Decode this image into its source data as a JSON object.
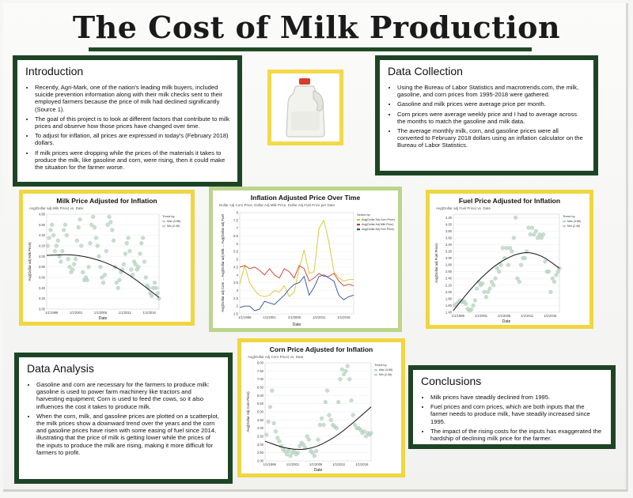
{
  "poster": {
    "title": "The Cost of Milk Production"
  },
  "introduction": {
    "heading": "Introduction",
    "bullets": [
      "Recently, Agri-Mark, one of the nation's leading milk buyers, included suicide prevention information along with their milk checks sent to their employed farmers because the price of milk had declined significantly (Source 1).",
      "The goal of this project is to look at different factors that contribute to milk prices and observe how those prices have changed over time.",
      "To adjust for inflation, all prices are expressed in today's (February 2018) dollars.",
      "If milk prices were dropping while the prices of the materials it takes to produce the milk, like gasoline and corn, were rising, then it could make the situation for the farmer worse."
    ]
  },
  "data_collection": {
    "heading": "Data Collection",
    "bullets": [
      "Using the Bureau of Labor Statistics and macrotrends.com, the milk, gasoline, and corn prices from 1995-2018 were gathered.",
      "Gasoline and milk prices were average price per month.",
      "Corn prices were average weekly price and I had to average across the months to match the gasoline and milk data.",
      "The average monthly milk, corn, and gasoline prices were all converted to February 2018 dollars using an inflation calculator on the Bureau of Labor Statistics."
    ]
  },
  "data_analysis": {
    "heading": "Data Analysis",
    "bullets": [
      "Gasoline and corn are necessary for the farmers to produce milk: gasoline is used to power farm machinery like tractors and harvesting equipment; Corn is used to feed the cows, so it also influences the cost it takes to produce milk.",
      "When the corn, milk, and gasoline prices are plotted on a scatterplot, the milk prices show a downward trend over the years and the corn and gasoline prices have risen with some easing of fuel since 2014, illustrating that the price of milk is getting lower while the prices of the inputs to produce the milk are rising, making it more difficult for farmers to profit."
    ]
  },
  "conclusions": {
    "heading": "Conclusions",
    "bullets": [
      "Milk prices have steadily declined from 1995.",
      "Fuel prices and corn prices, which are both inputs that the farmer needs to produce milk, have steadily increased since 1995.",
      "The impact of the rising costs for the inputs has exaggerated the hardship of declining milk price for the farmer."
    ]
  },
  "colors": {
    "panel_border": "#1d4525",
    "yellow_border": "#f0d640",
    "green_border": "#bcd58c",
    "scatter_point": "#b5d3c0",
    "trend_line": "#111111",
    "series_milk": "#cc3a2e",
    "series_fuel": "#d8c328",
    "series_corn": "#2f4f9a"
  },
  "chart_data": [
    {
      "id": "milk",
      "type": "scatter",
      "title": "Milk Price Adjusted for Inflation",
      "subtitle": "Avg(Dollar adj Milk Price) vs. Date",
      "xlabel": "Date",
      "ylabel": "Avg(Dollar adj Milk Price)",
      "x_ticks": [
        "1/1/1996",
        "1/1/2001",
        "1/1/2006",
        "1/1/2011",
        "1/1/2016"
      ],
      "y_ticks": [
        "3.00",
        "3.20",
        "3.40",
        "3.60",
        "3.80",
        "4.00",
        "4.20",
        "4.40",
        "4.60",
        "4.80"
      ],
      "ylim": [
        3.0,
        4.8
      ],
      "xlim": [
        1995,
        2018
      ],
      "legend": {
        "title": "Trend by",
        "items": [
          "Max (3.86)",
          "Min (2.46)"
        ]
      },
      "trend": {
        "type": "quadratic",
        "points": [
          [
            1995,
            4.02
          ],
          [
            2001,
            4.04
          ],
          [
            2007,
            3.9
          ],
          [
            2012,
            3.65
          ],
          [
            2018,
            3.22
          ]
        ]
      },
      "points": [
        [
          1995.2,
          4.2
        ],
        [
          1995.5,
          4.35
        ],
        [
          1995.8,
          4.5
        ],
        [
          1996.1,
          4.6
        ],
        [
          1996.4,
          4.4
        ],
        [
          1996.7,
          4.1
        ],
        [
          1997.0,
          4.2
        ],
        [
          1997.3,
          4.3
        ],
        [
          1997.6,
          4.0
        ],
        [
          1997.9,
          3.9
        ],
        [
          1998.2,
          4.1
        ],
        [
          1998.5,
          4.5
        ],
        [
          1998.8,
          4.6
        ],
        [
          1999.1,
          4.4
        ],
        [
          1999.4,
          3.95
        ],
        [
          1999.7,
          3.8
        ],
        [
          2000.0,
          3.7
        ],
        [
          2000.3,
          3.75
        ],
        [
          2000.6,
          3.85
        ],
        [
          2000.9,
          3.95
        ],
        [
          2001.2,
          4.3
        ],
        [
          2001.5,
          4.55
        ],
        [
          2001.8,
          4.7
        ],
        [
          2002.1,
          4.2
        ],
        [
          2002.4,
          3.7
        ],
        [
          2002.7,
          3.55
        ],
        [
          2003.0,
          3.6
        ],
        [
          2003.3,
          3.55
        ],
        [
          2003.6,
          3.8
        ],
        [
          2003.9,
          4.25
        ],
        [
          2004.2,
          4.6
        ],
        [
          2004.5,
          4.75
        ],
        [
          2004.8,
          4.55
        ],
        [
          2005.1,
          4.35
        ],
        [
          2005.4,
          4.2
        ],
        [
          2005.7,
          4.0
        ],
        [
          2006.0,
          3.8
        ],
        [
          2006.3,
          3.6
        ],
        [
          2006.6,
          3.5
        ],
        [
          2006.9,
          3.65
        ],
        [
          2007.2,
          4.1
        ],
        [
          2007.5,
          4.6
        ],
        [
          2007.8,
          4.75
        ],
        [
          2008.1,
          4.65
        ],
        [
          2008.4,
          4.5
        ],
        [
          2008.7,
          4.3
        ],
        [
          2009.0,
          3.8
        ],
        [
          2009.3,
          3.5
        ],
        [
          2009.6,
          3.4
        ],
        [
          2009.9,
          3.55
        ],
        [
          2010.2,
          3.7
        ],
        [
          2010.5,
          3.75
        ],
        [
          2010.8,
          3.85
        ],
        [
          2011.1,
          4.05
        ],
        [
          2011.4,
          4.25
        ],
        [
          2011.7,
          4.35
        ],
        [
          2012.0,
          4.1
        ],
        [
          2012.3,
          3.75
        ],
        [
          2012.6,
          3.65
        ],
        [
          2012.9,
          3.9
        ],
        [
          2013.2,
          3.85
        ],
        [
          2013.5,
          3.75
        ],
        [
          2013.8,
          3.8
        ],
        [
          2014.1,
          4.05
        ],
        [
          2014.4,
          4.25
        ],
        [
          2014.7,
          4.35
        ],
        [
          2015.0,
          3.9
        ],
        [
          2015.3,
          3.6
        ],
        [
          2015.6,
          3.45
        ],
        [
          2015.9,
          3.4
        ],
        [
          2016.2,
          3.3
        ],
        [
          2016.5,
          3.25
        ],
        [
          2016.8,
          3.4
        ],
        [
          2017.1,
          3.5
        ],
        [
          2017.4,
          3.4
        ],
        [
          2017.7,
          3.3
        ],
        [
          2018.0,
          3.2
        ]
      ]
    },
    {
      "id": "combined",
      "type": "line",
      "title": "Inflation Adjusted Price Over Time",
      "subtitle": "Dollar Adj Corn Price, Dollar Adj Milk Price, Dollar Adj Fuel Price per Date",
      "xlabel": "Date",
      "ylabel": "Avg(Dollar adj Corn ...  Avg(Dollar adj Milk ...  Avg(Dollar adj Fuel",
      "x_ticks": [
        "1/1/1996",
        "1/1/2001",
        "1/1/2006",
        "1/1/2011",
        "1/1/2016"
      ],
      "y_ticks": [
        "1.5",
        "2",
        "2.5",
        "3",
        "3.5",
        "4",
        "4.5",
        "5",
        "5.5",
        "6",
        "6.5",
        "7",
        "7.5",
        "8"
      ],
      "ylim": [
        1.5,
        8
      ],
      "xlim": [
        1995,
        2018
      ],
      "legend": {
        "title": "Series by",
        "items": [
          "Avg(Dollar Adj Corn Price)",
          "Avg(Dollar Adj Milk Price)",
          "Avg(Dollar Adj Fuel Price)"
        ]
      },
      "x": [
        1995,
        1996,
        1997,
        1998,
        1999,
        2000,
        2001,
        2002,
        2003,
        2004,
        2005,
        2006,
        2007,
        2008,
        2009,
        2010,
        2011,
        2012,
        2013,
        2014,
        2015,
        2016,
        2017,
        2018
      ],
      "series": [
        {
          "name": "Avg(Dollar Adj Corn Price)",
          "values": [
            3.4,
            4.6,
            3.5,
            3.0,
            2.7,
            2.6,
            2.7,
            3.0,
            2.9,
            3.3,
            2.6,
            2.9,
            4.4,
            5.6,
            4.1,
            4.2,
            7.0,
            7.5,
            6.1,
            4.2,
            3.8,
            3.6,
            3.7,
            3.7
          ]
        },
        {
          "name": "Avg(Dollar Adj Milk Price)",
          "values": [
            4.5,
            4.6,
            4.4,
            4.5,
            4.3,
            4.0,
            4.4,
            4.0,
            3.8,
            4.4,
            4.2,
            3.8,
            4.6,
            4.4,
            3.6,
            3.8,
            4.1,
            3.9,
            3.9,
            4.1,
            3.6,
            3.3,
            3.4,
            3.3
          ]
        },
        {
          "name": "Avg(Dollar Adj Fuel Price)",
          "values": [
            1.9,
            2.0,
            2.0,
            1.7,
            1.8,
            2.3,
            2.2,
            2.1,
            2.4,
            2.7,
            3.1,
            3.4,
            3.5,
            3.9,
            2.7,
            3.2,
            3.9,
            4.0,
            3.8,
            3.6,
            2.7,
            2.4,
            2.6,
            2.7
          ]
        }
      ]
    },
    {
      "id": "fuel",
      "type": "scatter",
      "title": "Fuel Price Adjusted for Inflation",
      "subtitle": "Avg(Dollar adj Fuel Price) vs. Date",
      "xlabel": "Date",
      "ylabel": "Avg(Dollar adj Fuel Price)",
      "x_ticks": [
        "1/1/1996",
        "1/1/2001",
        "1/1/2006",
        "1/1/2011",
        "1/1/2016"
      ],
      "y_ticks": [
        "1.40",
        "1.60",
        "1.80",
        "2.00",
        "2.20",
        "2.40",
        "2.60",
        "2.80",
        "3.00",
        "3.20",
        "3.40",
        "3.60",
        "3.80",
        "4.00",
        "4.20"
      ],
      "ylim": [
        1.4,
        4.3
      ],
      "xlim": [
        1995,
        2018
      ],
      "legend": {
        "title": "Trend by",
        "items": [
          "Max (3.86)",
          "Min (2.46)"
        ]
      },
      "trend": {
        "type": "quadratic",
        "points": [
          [
            1995,
            1.45
          ],
          [
            2000,
            2.3
          ],
          [
            2005,
            2.9
          ],
          [
            2010,
            3.2
          ],
          [
            2014,
            3.1
          ],
          [
            2018,
            2.7
          ]
        ]
      },
      "points": [
        [
          1995.3,
          1.6
        ],
        [
          1995.7,
          1.65
        ],
        [
          1996.1,
          1.7
        ],
        [
          1996.5,
          1.75
        ],
        [
          1996.9,
          1.7
        ],
        [
          1997.3,
          1.72
        ],
        [
          1997.7,
          1.65
        ],
        [
          1998.1,
          1.5
        ],
        [
          1998.5,
          1.45
        ],
        [
          1998.9,
          1.48
        ],
        [
          1999.3,
          1.6
        ],
        [
          1999.7,
          1.75
        ],
        [
          2000.1,
          2.1
        ],
        [
          2000.5,
          2.3
        ],
        [
          2000.9,
          2.2
        ],
        [
          2001.3,
          2.25
        ],
        [
          2001.7,
          2.0
        ],
        [
          2002.1,
          1.85
        ],
        [
          2002.5,
          2.0
        ],
        [
          2002.9,
          2.1
        ],
        [
          2003.3,
          2.3
        ],
        [
          2003.7,
          2.2
        ],
        [
          2004.1,
          2.4
        ],
        [
          2004.5,
          2.7
        ],
        [
          2004.9,
          2.6
        ],
        [
          2005.3,
          2.8
        ],
        [
          2005.7,
          3.3
        ],
        [
          2006.1,
          3.0
        ],
        [
          2006.5,
          3.3
        ],
        [
          2006.9,
          2.8
        ],
        [
          2007.3,
          3.3
        ],
        [
          2007.7,
          3.2
        ],
        [
          2008.1,
          3.6
        ],
        [
          2008.5,
          4.2
        ],
        [
          2008.9,
          2.4
        ],
        [
          2009.3,
          2.3
        ],
        [
          2009.7,
          2.8
        ],
        [
          2010.1,
          3.0
        ],
        [
          2010.5,
          3.0
        ],
        [
          2010.9,
          3.2
        ],
        [
          2011.3,
          3.9
        ],
        [
          2011.7,
          3.7
        ],
        [
          2012.1,
          3.9
        ],
        [
          2012.5,
          3.7
        ],
        [
          2012.9,
          3.8
        ],
        [
          2013.3,
          3.6
        ],
        [
          2013.7,
          3.7
        ],
        [
          2014.1,
          3.6
        ],
        [
          2014.5,
          3.7
        ],
        [
          2014.9,
          2.9
        ],
        [
          2015.3,
          2.6
        ],
        [
          2015.7,
          2.6
        ],
        [
          2016.1,
          2.0
        ],
        [
          2016.5,
          2.4
        ],
        [
          2016.9,
          2.3
        ],
        [
          2017.3,
          2.5
        ],
        [
          2017.7,
          2.6
        ],
        [
          2018.0,
          2.7
        ]
      ]
    },
    {
      "id": "corn",
      "type": "scatter",
      "title": "Corn Price Adjusted for Inflation",
      "subtitle": "Avg(Dollar Adj Corn Price) vs. Date",
      "xlabel": "Date",
      "ylabel": "Avg(Dollar Adj Corn Price)",
      "x_ticks": [
        "1/1/1996",
        "1/1/2001",
        "1/1/2006",
        "1/1/2011",
        "1/1/2016"
      ],
      "y_ticks": [
        "2.00",
        "2.50",
        "3.00",
        "3.50",
        "4.00",
        "4.50",
        "5.00",
        "5.50",
        "6.00",
        "6.50",
        "7.00",
        "7.50",
        "8.00"
      ],
      "ylim": [
        2.0,
        8.0
      ],
      "xlim": [
        1995,
        2018
      ],
      "legend": {
        "title": "Trend by",
        "items": [
          "Max (3.86)",
          "Min (2.46)"
        ]
      },
      "trend": {
        "type": "quadratic",
        "points": [
          [
            1995,
            3.2
          ],
          [
            2000,
            2.7
          ],
          [
            2005,
            2.7
          ],
          [
            2010,
            3.4
          ],
          [
            2014,
            4.3
          ],
          [
            2018,
            5.3
          ]
        ]
      },
      "points": [
        [
          1995.3,
          3.6
        ],
        [
          1995.7,
          4.4
        ],
        [
          1996.1,
          5.3
        ],
        [
          1996.5,
          6.3
        ],
        [
          1996.9,
          4.3
        ],
        [
          1997.3,
          3.8
        ],
        [
          1997.7,
          3.4
        ],
        [
          1998.1,
          3.2
        ],
        [
          1998.5,
          2.9
        ],
        [
          1998.9,
          2.7
        ],
        [
          1999.3,
          2.6
        ],
        [
          1999.7,
          2.4
        ],
        [
          2000.1,
          2.6
        ],
        [
          2000.5,
          2.3
        ],
        [
          2000.9,
          2.5
        ],
        [
          2001.3,
          2.6
        ],
        [
          2001.7,
          2.4
        ],
        [
          2002.1,
          2.5
        ],
        [
          2002.5,
          2.9
        ],
        [
          2002.9,
          3.1
        ],
        [
          2003.3,
          3.0
        ],
        [
          2003.7,
          2.8
        ],
        [
          2004.1,
          3.5
        ],
        [
          2004.5,
          3.3
        ],
        [
          2004.9,
          2.6
        ],
        [
          2005.3,
          2.5
        ],
        [
          2005.7,
          2.3
        ],
        [
          2006.1,
          2.6
        ],
        [
          2006.5,
          3.3
        ],
        [
          2006.9,
          4.2
        ],
        [
          2007.3,
          4.6
        ],
        [
          2007.7,
          4.2
        ],
        [
          2008.1,
          5.6
        ],
        [
          2008.5,
          6.3
        ],
        [
          2008.9,
          4.8
        ],
        [
          2009.3,
          4.5
        ],
        [
          2009.7,
          4.2
        ],
        [
          2010.1,
          4.1
        ],
        [
          2010.5,
          4.0
        ],
        [
          2010.9,
          5.6
        ],
        [
          2011.3,
          7.0
        ],
        [
          2011.7,
          7.6
        ],
        [
          2012.1,
          7.3
        ],
        [
          2012.5,
          7.5
        ],
        [
          2012.9,
          7.8
        ],
        [
          2013.3,
          7.0
        ],
        [
          2013.7,
          5.7
        ],
        [
          2014.1,
          4.8
        ],
        [
          2014.5,
          4.2
        ],
        [
          2014.9,
          4.0
        ],
        [
          2015.3,
          4.0
        ],
        [
          2015.7,
          3.9
        ],
        [
          2016.1,
          3.7
        ],
        [
          2016.5,
          3.8
        ],
        [
          2016.9,
          3.5
        ],
        [
          2017.3,
          3.7
        ],
        [
          2017.7,
          3.6
        ],
        [
          2018.0,
          3.7
        ]
      ]
    }
  ]
}
